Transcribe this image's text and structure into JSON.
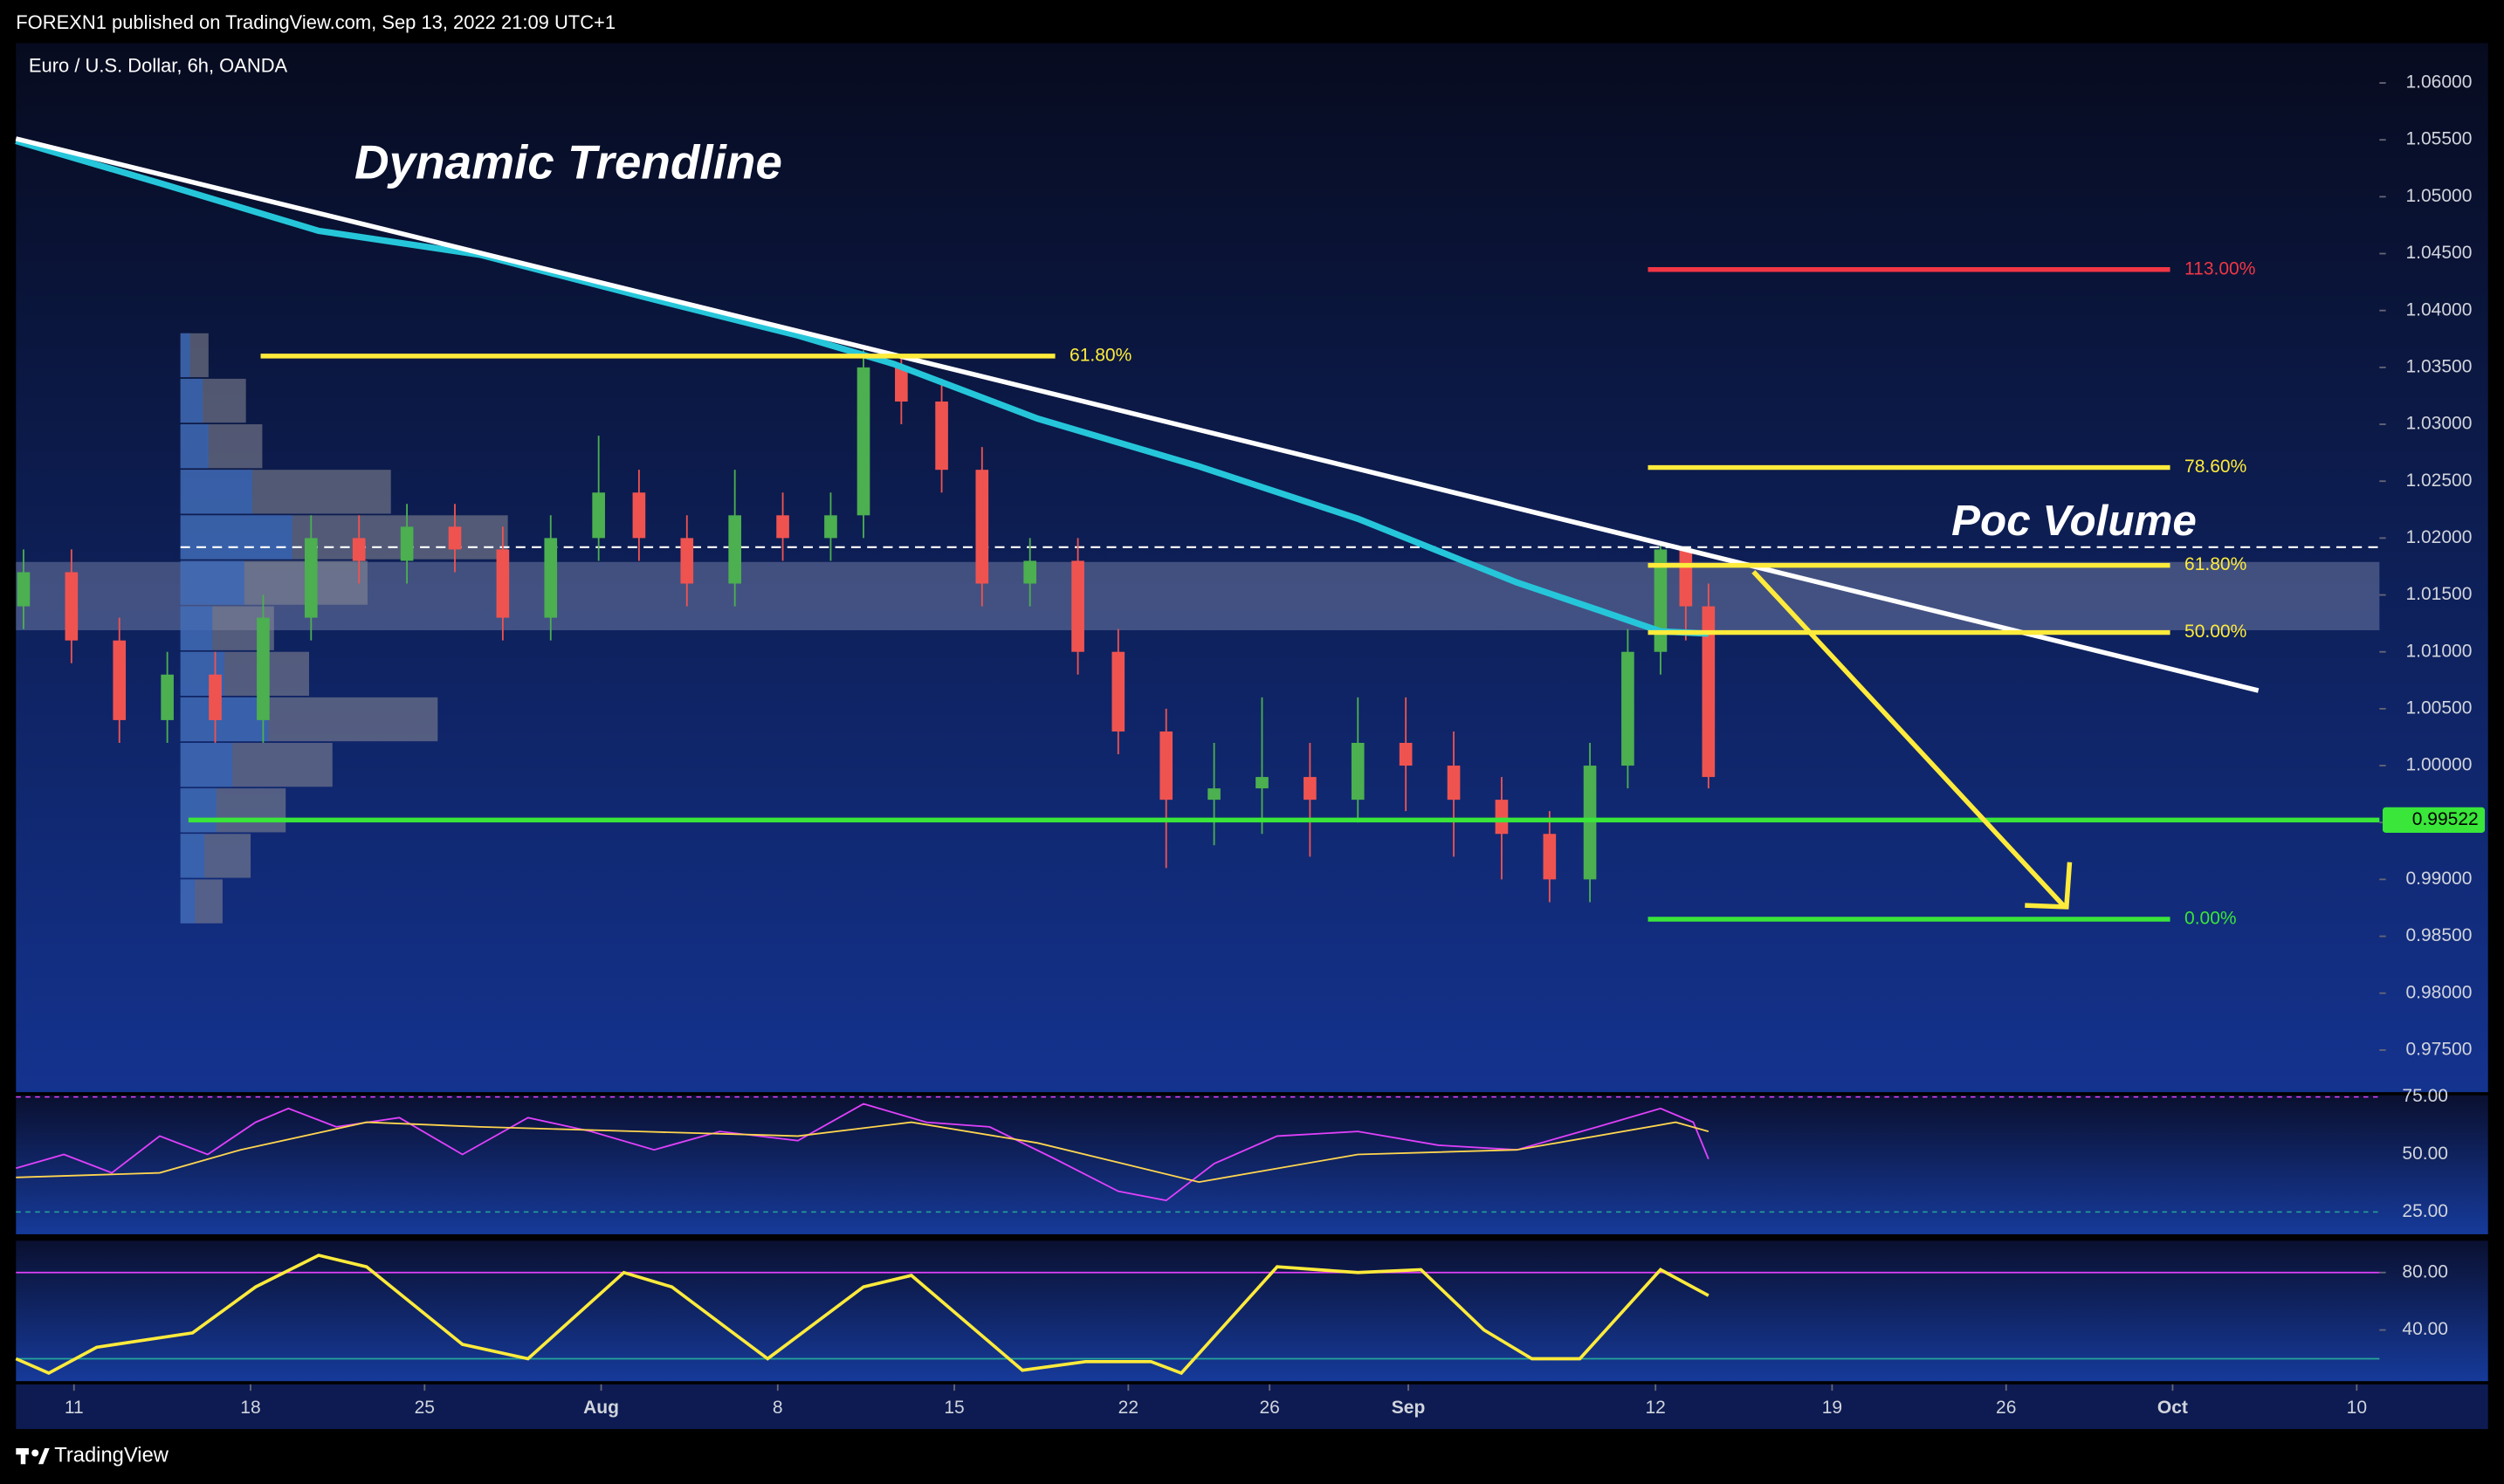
{
  "header": {
    "text": "FOREXN1 published on TradingView.com, Sep 13, 2022 21:09 UTC+1"
  },
  "footer": {
    "brand": "TradingView"
  },
  "chart_data": {
    "type": "candlestick",
    "title": "Euro / U.S. Dollar, 6h, OANDA",
    "annotations": [
      "Dynamic Trendline",
      "Poc Volume"
    ],
    "xlim": [
      -2.3,
      91.4
    ],
    "xticks": [
      {
        "value": 0,
        "label": "11"
      },
      {
        "value": 7.0,
        "label": "18"
      },
      {
        "value": 13.9,
        "label": "25"
      },
      {
        "value": 20.9,
        "label": "Aug"
      },
      {
        "value": 27.9,
        "label": "8"
      },
      {
        "value": 34.9,
        "label": "15"
      },
      {
        "value": 41.8,
        "label": "22"
      },
      {
        "value": 47.4,
        "label": "26"
      },
      {
        "value": 52.9,
        "label": "Sep"
      },
      {
        "value": 62.7,
        "label": "12"
      },
      {
        "value": 69.7,
        "label": "19"
      },
      {
        "value": 76.6,
        "label": "26"
      },
      {
        "value": 83.2,
        "label": "Oct"
      },
      {
        "value": 90.5,
        "label": "10"
      }
    ],
    "ylim": [
      0.9713,
      1.0635
    ],
    "yticks": [
      {
        "value": 1.06,
        "label": "1.06000"
      },
      {
        "value": 1.055,
        "label": "1.05500"
      },
      {
        "value": 1.05,
        "label": "1.05000"
      },
      {
        "value": 1.045,
        "label": "1.04500"
      },
      {
        "value": 1.04,
        "label": "1.04000"
      },
      {
        "value": 1.035,
        "label": "1.03500"
      },
      {
        "value": 1.03,
        "label": "1.03000"
      },
      {
        "value": 1.025,
        "label": "1.02500"
      },
      {
        "value": 1.02,
        "label": "1.02000"
      },
      {
        "value": 1.015,
        "label": "1.01500"
      },
      {
        "value": 1.01,
        "label": "1.01000"
      },
      {
        "value": 1.005,
        "label": "1.00500"
      },
      {
        "value": 1.0,
        "label": "1.00000"
      },
      {
        "value": 0.995,
        "label": "0.99500"
      },
      {
        "value": 0.99,
        "label": "0.99000"
      },
      {
        "value": 0.985,
        "label": "0.98500"
      },
      {
        "value": 0.98,
        "label": "0.98000"
      },
      {
        "value": 0.975,
        "label": "0.97500"
      }
    ],
    "up_color": "#4caf50",
    "down_color": "#ef5350",
    "candles": {
      "x": [
        -2.0,
        -0.1,
        1.8,
        3.7,
        5.6,
        7.5,
        9.4,
        11.3,
        13.2,
        15.1,
        17.0,
        18.9,
        20.8,
        22.4,
        24.3,
        26.2,
        28.1,
        30.0,
        31.3,
        32.8,
        34.4,
        36.0,
        37.9,
        39.8,
        41.4,
        43.3,
        45.2,
        47.1,
        49.0,
        50.9,
        52.8,
        54.7,
        56.6,
        58.5,
        60.1,
        61.6,
        62.9,
        63.9,
        64.8
      ],
      "open": [
        1.014,
        1.017,
        1.011,
        1.004,
        1.008,
        1.004,
        1.013,
        1.02,
        1.018,
        1.021,
        1.019,
        1.013,
        1.02,
        1.024,
        1.02,
        1.016,
        1.022,
        1.02,
        1.022,
        1.035,
        1.032,
        1.026,
        1.016,
        1.018,
        1.01,
        1.003,
        0.997,
        0.998,
        0.999,
        0.997,
        1.002,
        1.0,
        0.997,
        0.994,
        0.99,
        1.0,
        1.01,
        1.019,
        1.014
      ],
      "high": [
        1.019,
        1.019,
        1.013,
        1.01,
        1.01,
        1.015,
        1.022,
        1.022,
        1.023,
        1.023,
        1.021,
        1.022,
        1.029,
        1.026,
        1.022,
        1.026,
        1.024,
        1.024,
        1.0365,
        1.036,
        1.034,
        1.028,
        1.02,
        1.02,
        1.012,
        1.005,
        1.002,
        1.006,
        1.002,
        1.006,
        1.006,
        1.003,
        0.999,
        0.996,
        1.002,
        1.012,
        1.0195,
        1.019,
        1.016
      ],
      "low": [
        1.012,
        1.009,
        1.002,
        1.002,
        1.002,
        1.002,
        1.011,
        1.016,
        1.016,
        1.017,
        1.011,
        1.011,
        1.018,
        1.018,
        1.014,
        1.014,
        1.018,
        1.018,
        1.02,
        1.03,
        1.024,
        1.014,
        1.014,
        1.008,
        1.001,
        0.991,
        0.993,
        0.994,
        0.992,
        0.995,
        0.996,
        0.992,
        0.99,
        0.988,
        0.988,
        0.998,
        1.008,
        1.011,
        0.998
      ],
      "close": [
        1.017,
        1.011,
        1.004,
        1.008,
        1.004,
        1.013,
        1.02,
        1.018,
        1.021,
        1.019,
        1.013,
        1.02,
        1.024,
        1.02,
        1.016,
        1.022,
        1.02,
        1.022,
        1.035,
        1.032,
        1.026,
        1.016,
        1.018,
        1.01,
        1.003,
        0.997,
        0.998,
        0.999,
        0.997,
        1.002,
        1.0,
        0.997,
        0.994,
        0.99,
        1.0,
        1.01,
        1.019,
        1.014,
        0.999
      ]
    },
    "lines": [
      {
        "color": "#26c6da",
        "x": [
          -2.3,
          3.4,
          9.7,
          16.1,
          22.4,
          28.7,
          32.5,
          38.2,
          44.6,
          50.9,
          57.2,
          60.4,
          62.9,
          64.8
        ],
        "values": [
          1.0549,
          1.0512,
          1.047,
          1.0449,
          1.0413,
          1.0378,
          1.0353,
          1.0305,
          1.0263,
          1.0217,
          1.0161,
          1.0137,
          1.0118,
          1.0116
        ]
      },
      {
        "color": "#ffffff",
        "x": [
          -2.3,
          86.6
        ],
        "values": [
          1.0551,
          1.0066
        ]
      }
    ],
    "zone": [
      1.0119,
      1.0179
    ],
    "poc": 1.0192,
    "support": 0.99522,
    "support_color": "#39e639",
    "fib_levels": [
      {
        "price": 1.036,
        "label": "61.80%",
        "color": "#ffeb3b",
        "x": [
          7.4,
          38.9
        ]
      },
      {
        "price": 1.0436,
        "label": "113.00%",
        "color": "#f23645",
        "x": [
          62.4,
          83.1
        ]
      },
      {
        "price": 1.0262,
        "label": "78.60%",
        "color": "#ffeb3b",
        "x": [
          62.4,
          83.1
        ]
      },
      {
        "price": 1.0176,
        "label": "61.80%",
        "color": "#ffeb3b",
        "x": [
          62.4,
          83.1
        ]
      },
      {
        "price": 1.0117,
        "label": "50.00%",
        "color": "#ffeb3b",
        "x": [
          62.4,
          83.1
        ]
      },
      {
        "price": 0.9865,
        "label": "0.00%",
        "color": "#39e639",
        "x": [
          62.4,
          83.1
        ]
      }
    ],
    "volume_profile": {
      "price": [
        1.036,
        1.032,
        1.028,
        1.024,
        1.02,
        1.016,
        1.012,
        1.008,
        1.004,
        1.0,
        0.996,
        0.992,
        0.988
      ],
      "values": [
        12,
        28,
        35,
        90,
        140,
        80,
        40,
        55,
        110,
        65,
        45,
        30,
        18
      ]
    },
    "rsi": {
      "ylim": [
        15.3,
        75.7
      ],
      "yticks": [
        {
          "value": 75,
          "label": "75.00"
        },
        {
          "value": 50,
          "label": "50.00"
        },
        {
          "value": 25,
          "label": "25.00"
        }
      ],
      "series": [
        {
          "color": "#e040fb",
          "x": [
            -2.3,
            -0.4,
            1.5,
            3.4,
            5.3,
            7.2,
            8.5,
            10.4,
            12.9,
            15.4,
            18.0,
            20.5,
            23.0,
            25.6,
            28.7,
            31.3,
            33.8,
            36.3,
            38.9,
            41.4,
            43.3,
            45.2,
            47.7,
            50.9,
            54.1,
            57.2,
            60.4,
            62.9,
            64.2,
            64.8
          ],
          "values": [
            44,
            50,
            42,
            58,
            50,
            64,
            70,
            62,
            66,
            50,
            66,
            60,
            52,
            60,
            56,
            72,
            64,
            62,
            48,
            34,
            30,
            46,
            58,
            60,
            54,
            52,
            62,
            70,
            64,
            48
          ]
        },
        {
          "color": "#ffd54f",
          "x": [
            -2.3,
            3.4,
            6.6,
            11.6,
            16.1,
            22.4,
            28.7,
            33.2,
            38.2,
            44.6,
            50.9,
            57.2,
            63.5,
            64.8
          ],
          "values": [
            40,
            42,
            52,
            64,
            62,
            60,
            58,
            64,
            55,
            38,
            50,
            52,
            64,
            60
          ]
        }
      ]
    },
    "stoch": {
      "ylim": [
        4.4,
        102.2
      ],
      "yticks": [
        {
          "value": 80,
          "label": "80.00"
        },
        {
          "value": 40,
          "label": "40.00"
        }
      ],
      "bands": [
        80,
        20
      ],
      "band_colors": [
        "#e040fb",
        "#26a69a"
      ],
      "series": [
        {
          "color": "#ffeb3b",
          "x": [
            -2.3,
            -1.0,
            0.9,
            4.7,
            7.2,
            9.7,
            11.6,
            15.4,
            18.0,
            21.8,
            23.7,
            27.5,
            31.3,
            33.2,
            37.6,
            40.1,
            42.7,
            43.9,
            47.7,
            50.9,
            53.4,
            55.9,
            57.8,
            59.7,
            62.9,
            64.8
          ],
          "values": [
            20,
            10,
            28,
            38,
            70,
            92,
            84,
            30,
            20,
            80,
            70,
            20,
            70,
            78,
            12,
            18,
            18,
            10,
            84,
            80,
            82,
            40,
            20,
            20,
            82,
            64
          ]
        }
      ]
    }
  }
}
